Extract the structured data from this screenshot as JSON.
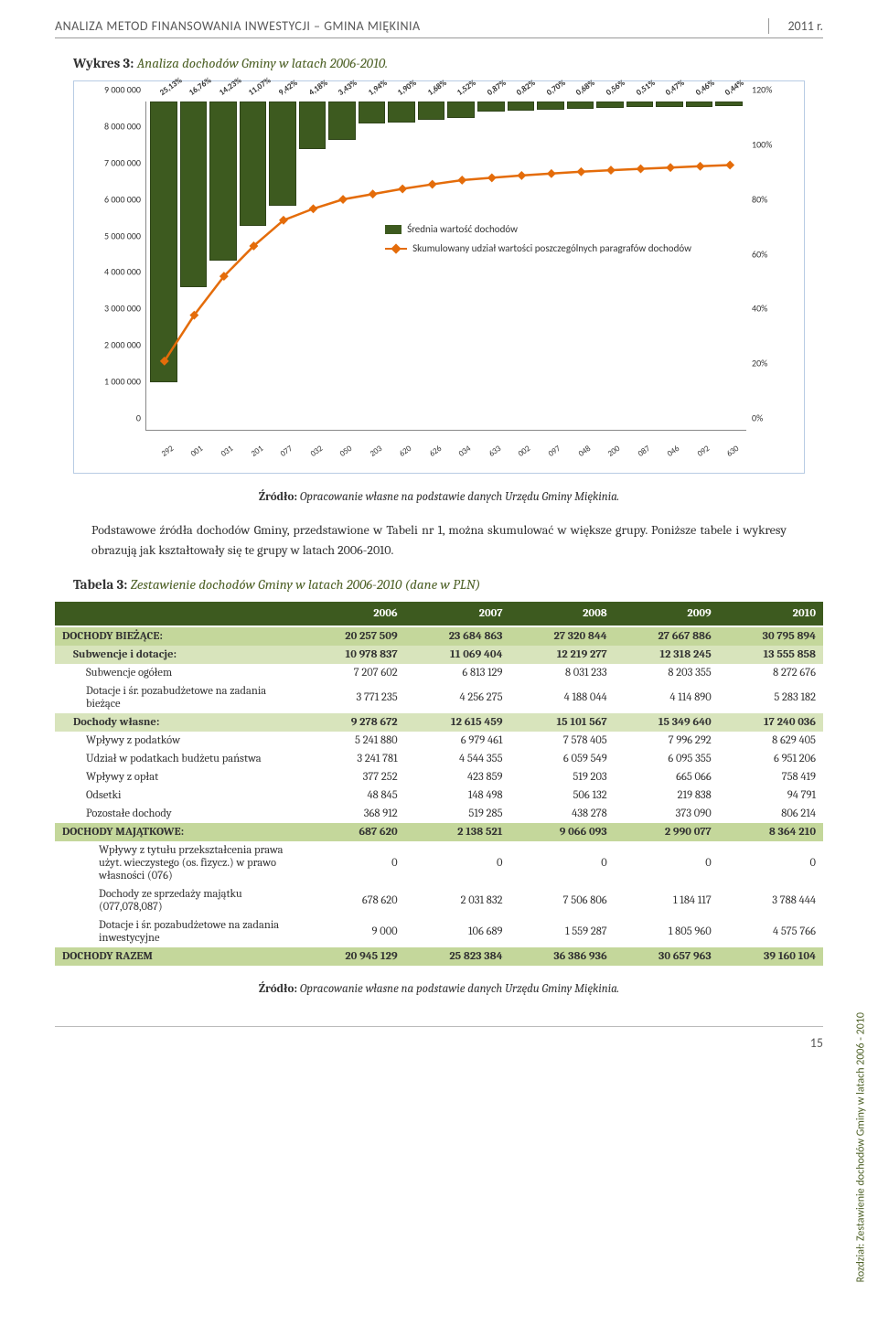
{
  "header": {
    "title": "ANALIZA METOD FINANSOWANIA INWESTYCJI – GMINA MIĘKINIA",
    "year": "2011 r."
  },
  "caption1_prefix": "Wykres 3: ",
  "caption1_title": "Analiza dochodów Gminy w latach 2006-2010.",
  "source_prefix": "Źródło: ",
  "source_text": "Opracowanie własne na podstawie danych Urzędu Gminy Miękinia.",
  "para1": "Podstawowe źródła dochodów Gminy, przedstawione w Tabeli nr 1, można skumulować w większe grupy. Poniższe tabele i wykresy obrazują jak kształtowały się te grupy w latach 2006-2010.",
  "caption2_prefix": "Tabela 3: ",
  "caption2_title": "Zestawienie dochodów Gminy w latach 2006-2010 (dane w PLN)",
  "side_label": "Rozdział: Zestawienie dochodów Gminy w latach 2006 - 2010",
  "page_number": "15",
  "chart": {
    "y_max": 9000000,
    "y_ticks": [
      "0",
      "1 000 000",
      "2 000 000",
      "3 000 000",
      "4 000 000",
      "5 000 000",
      "6 000 000",
      "7 000 000",
      "8 000 000",
      "9 000 000"
    ],
    "y2_ticks": [
      {
        "label": "0%",
        "v": 0
      },
      {
        "label": "20%",
        "v": 20
      },
      {
        "label": "40%",
        "v": 40
      },
      {
        "label": "60%",
        "v": 60
      },
      {
        "label": "80%",
        "v": 80
      },
      {
        "label": "100%",
        "v": 100
      },
      {
        "label": "120%",
        "v": 120
      }
    ],
    "y2_max": 120,
    "bar_color": "#3d5a1f",
    "line_color": "#e46c0a",
    "line_width": 2.5,
    "marker_size": 7,
    "background_color": "#ffffff",
    "bars": [
      {
        "x": "292",
        "value": 7700000,
        "pct": "25,13%",
        "cum": 25.13
      },
      {
        "x": "001",
        "value": 5100000,
        "pct": "16,76%",
        "cum": 41.89
      },
      {
        "x": "031",
        "value": 4350000,
        "pct": "14,23%",
        "cum": 56.12
      },
      {
        "x": "201",
        "value": 3400000,
        "pct": "11,07%",
        "cum": 67.19
      },
      {
        "x": "077",
        "value": 2850000,
        "pct": "9,42%",
        "cum": 76.61
      },
      {
        "x": "032",
        "value": 1300000,
        "pct": "4,18%",
        "cum": 80.79
      },
      {
        "x": "050",
        "value": 1050000,
        "pct": "3,43%",
        "cum": 84.22
      },
      {
        "x": "203",
        "value": 600000,
        "pct": "1,94%",
        "cum": 86.16
      },
      {
        "x": "620",
        "value": 570000,
        "pct": "1,90%",
        "cum": 88.06
      },
      {
        "x": "626",
        "value": 510000,
        "pct": "1,68%",
        "cum": 89.74
      },
      {
        "x": "034",
        "value": 450000,
        "pct": "1,52%",
        "cum": 91.26
      },
      {
        "x": "633",
        "value": 280000,
        "pct": "0,87%",
        "cum": 92.13
      },
      {
        "x": "002",
        "value": 250000,
        "pct": "0,82%",
        "cum": 92.95
      },
      {
        "x": "097",
        "value": 220000,
        "pct": "0,70%",
        "cum": 93.65
      },
      {
        "x": "048",
        "value": 210000,
        "pct": "0,68%",
        "cum": 94.33
      },
      {
        "x": "200",
        "value": 170000,
        "pct": "0,56%",
        "cum": 94.89
      },
      {
        "x": "087",
        "value": 155000,
        "pct": "0,51%",
        "cum": 95.4
      },
      {
        "x": "046",
        "value": 140000,
        "pct": "0,47%",
        "cum": 95.87
      },
      {
        "x": "092",
        "value": 138000,
        "pct": "0,46%",
        "cum": 96.33
      },
      {
        "x": "630",
        "value": 130000,
        "pct": "0,44%",
        "cum": 96.77
      }
    ],
    "legend": {
      "bar": "Średnia wartość dochodów",
      "line": "Skumulowany udział wartości poszczególnych paragrafów dochodów"
    }
  },
  "table": {
    "columns": [
      "",
      "2006",
      "2007",
      "2008",
      "2009",
      "2010"
    ],
    "rows": [
      {
        "lvl": 0,
        "label": "DOCHODY BIEŻĄCE:",
        "v": [
          "20 257 509",
          "23 684 863",
          "27 320 844",
          "27 667 886",
          "30 795 894"
        ]
      },
      {
        "lvl": 1,
        "label": "Subwencje i dotacje:",
        "v": [
          "10 978 837",
          "11 069 404",
          "12 219 277",
          "12 318 245",
          "13 555 858"
        ]
      },
      {
        "lvl": 2,
        "label": "Subwencje ogółem",
        "v": [
          "7 207 602",
          "6 813 129",
          "8 031 233",
          "8 203 355",
          "8 272 676"
        ]
      },
      {
        "lvl": 2,
        "label": "Dotacje i śr. pozabudżetowe na zadania bieżące",
        "v": [
          "3 771 235",
          "4 256 275",
          "4 188 044",
          "4 114 890",
          "5 283 182"
        ]
      },
      {
        "lvl": 1,
        "label": "Dochody własne:",
        "v": [
          "9 278 672",
          "12 615 459",
          "15 101 567",
          "15 349 640",
          "17 240 036"
        ]
      },
      {
        "lvl": 2,
        "label": "Wpływy z podatków",
        "v": [
          "5 241 880",
          "6 979 461",
          "7 578 405",
          "7 996 292",
          "8 629 405"
        ]
      },
      {
        "lvl": 2,
        "label": "Udział w podatkach budżetu państwa",
        "v": [
          "3 241 781",
          "4 544 355",
          "6 059 549",
          "6 095 355",
          "6 951 206"
        ]
      },
      {
        "lvl": 2,
        "label": "Wpływy z opłat",
        "v": [
          "377 252",
          "423 859",
          "519 203",
          "665 066",
          "758 419"
        ]
      },
      {
        "lvl": 2,
        "label": "Odsetki",
        "v": [
          "48 845",
          "148 498",
          "506 132",
          "219 838",
          "94 791"
        ]
      },
      {
        "lvl": 2,
        "label": "Pozostałe dochody",
        "v": [
          "368 912",
          "519 285",
          "438 278",
          "373 090",
          "806 214"
        ]
      },
      {
        "lvl": 0,
        "label": "DOCHODY MAJĄTKOWE:",
        "v": [
          "687 620",
          "2 138 521",
          "9 066 093",
          "2 990 077",
          "8 364 210"
        ]
      },
      {
        "lvl": 3,
        "label": "Wpływy z tytułu przekształcenia prawa użyt. wieczystego (os. fizycz.) w prawo własności (076)",
        "v": [
          "0",
          "0",
          "0",
          "0",
          "0"
        ]
      },
      {
        "lvl": 3,
        "label": "Dochody ze sprzedaży majątku (077,078,087)",
        "v": [
          "678 620",
          "2 031 832",
          "7 506 806",
          "1 184 117",
          "3 788 444"
        ]
      },
      {
        "lvl": 3,
        "label": "Dotacje i śr. pozabudżetowe na zadania inwestycyjne",
        "v": [
          "9 000",
          "106 689",
          "1 559 287",
          "1 805 960",
          "4 575 766"
        ]
      },
      {
        "lvl": 0,
        "label": "DOCHODY RAZEM",
        "v": [
          "20 945 129",
          "25 823 384",
          "36 386 936",
          "30 657 963",
          "39 160 104"
        ],
        "total": true
      }
    ]
  }
}
